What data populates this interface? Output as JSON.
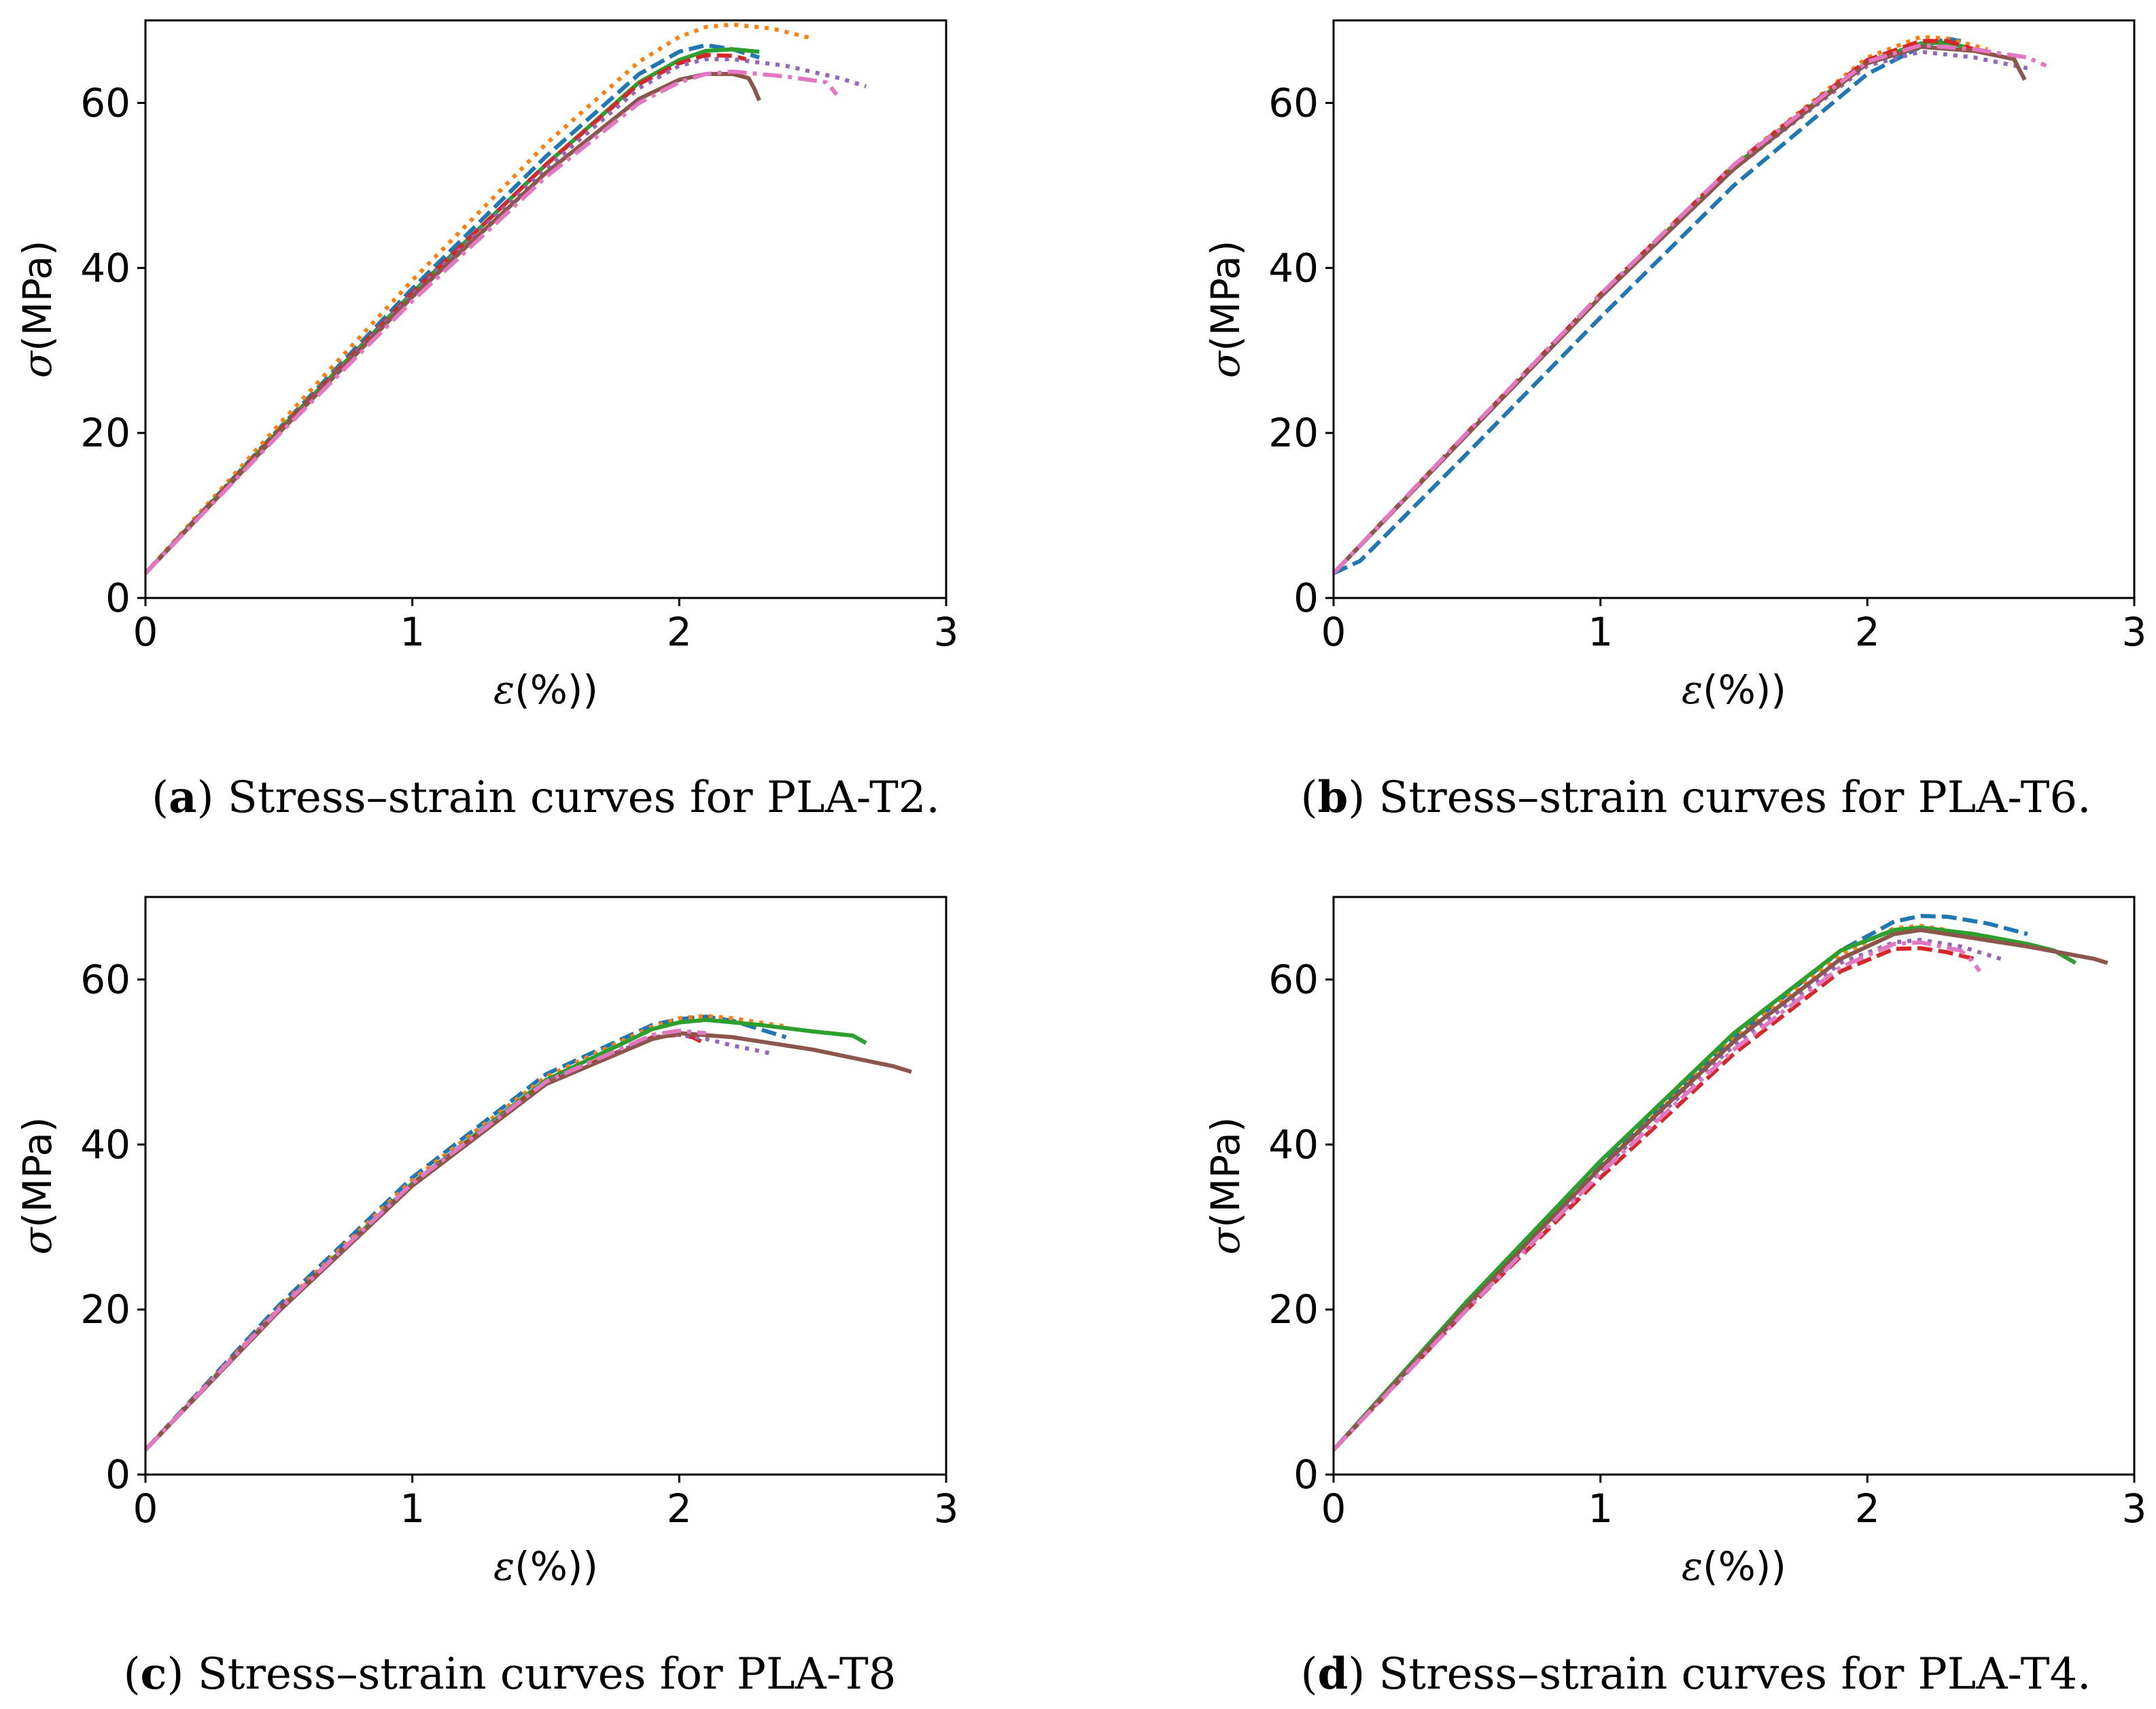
{
  "colors": {
    "tab_blue": "#1f77b4",
    "tab_orange": "#ff7f0e",
    "tab_green": "#2ca02c",
    "tab_red": "#d62728",
    "tab_purple": "#9467bd",
    "tab_brown": "#8c564b",
    "tab_pink": "#e377c2"
  },
  "chart_data": [
    {
      "type": "line",
      "panel": "a",
      "caption_letter": "a",
      "caption_text": " Stress–strain curves for PLA-T2.",
      "xlabel_symbol": "ε",
      "xlabel_unit": "(%))",
      "ylabel_symbol": "σ",
      "ylabel_unit": "(MPa)",
      "xlim": [
        0,
        3
      ],
      "ylim": [
        0,
        70
      ],
      "xticks": [
        0,
        1,
        2,
        3
      ],
      "yticks": [
        0,
        20,
        40,
        60
      ],
      "xtick_labels": [
        "0",
        "1",
        "2",
        "3"
      ],
      "ytick_labels": [
        "0",
        "20",
        "40",
        "60"
      ],
      "series": [
        {
          "color": "tab_blue",
          "dash": "dashed",
          "x": [
            0,
            0.5,
            1.0,
            1.5,
            1.85,
            2.0,
            2.1,
            2.2,
            2.3
          ],
          "y": [
            3,
            20.5,
            37.5,
            53.5,
            63.5,
            66.2,
            67.0,
            66.5,
            65.5
          ]
        },
        {
          "color": "tab_orange",
          "dash": "dotted",
          "x": [
            0,
            0.5,
            1.0,
            1.5,
            1.85,
            2.0,
            2.1,
            2.2,
            2.35,
            2.5
          ],
          "y": [
            3,
            21,
            38.5,
            55,
            65,
            68,
            69.2,
            69.5,
            69.0,
            67.8
          ]
        },
        {
          "color": "tab_green",
          "dash": "solid",
          "x": [
            0,
            0.5,
            1.0,
            1.5,
            1.85,
            2.0,
            2.1,
            2.2,
            2.3
          ],
          "y": [
            3,
            20.3,
            37,
            52.5,
            62.5,
            65.2,
            66.3,
            66.5,
            66.2
          ]
        },
        {
          "color": "tab_red",
          "dash": "dashed",
          "x": [
            0,
            0.5,
            1.0,
            1.5,
            1.85,
            2.0,
            2.1,
            2.2,
            2.25
          ],
          "y": [
            3,
            20.2,
            37,
            52.5,
            62.3,
            64.8,
            65.8,
            65.7,
            65.3
          ]
        },
        {
          "color": "tab_purple",
          "dash": "dotted",
          "x": [
            0,
            0.5,
            1.0,
            1.5,
            1.85,
            2.0,
            2.1,
            2.2,
            2.4,
            2.6,
            2.7
          ],
          "y": [
            3,
            20,
            36.8,
            52,
            61.8,
            64.5,
            65.3,
            65.3,
            64.5,
            63.0,
            62.0
          ]
        },
        {
          "color": "tab_brown",
          "dash": "solid",
          "x": [
            0,
            0.5,
            1.0,
            1.5,
            1.85,
            2.0,
            2.1,
            2.2,
            2.26,
            2.28,
            2.3
          ],
          "y": [
            3,
            20,
            36.5,
            51.5,
            60.5,
            62.8,
            63.5,
            63.5,
            63.0,
            61.8,
            60.3
          ]
        },
        {
          "color": "tab_pink",
          "dash": "dashdot",
          "x": [
            0,
            0.5,
            1.0,
            1.5,
            1.85,
            2.0,
            2.1,
            2.2,
            2.4,
            2.55,
            2.57,
            2.59
          ],
          "y": [
            3,
            19.8,
            36,
            51,
            60,
            62.5,
            63.5,
            63.8,
            63.2,
            62.5,
            61.8,
            61.0
          ]
        }
      ]
    },
    {
      "type": "line",
      "panel": "b",
      "caption_letter": "b",
      "caption_text": " Stress–strain curves for PLA-T6.",
      "xlabel_symbol": "ε",
      "xlabel_unit": "(%))",
      "ylabel_symbol": "σ",
      "ylabel_unit": "(MPa)",
      "xlim": [
        0,
        3
      ],
      "ylim": [
        0,
        70
      ],
      "xticks": [
        0,
        1,
        2,
        3
      ],
      "yticks": [
        0,
        20,
        40,
        60
      ],
      "xtick_labels": [
        "0",
        "1",
        "2",
        "3"
      ],
      "ytick_labels": [
        "0",
        "20",
        "40",
        "60"
      ],
      "series": [
        {
          "color": "tab_blue",
          "dash": "dashed",
          "x": [
            0,
            0.1,
            0.3,
            0.5,
            1.0,
            1.5,
            2.0,
            2.2,
            2.3,
            2.35
          ],
          "y": [
            3,
            4.5,
            11,
            17.5,
            34,
            50,
            63.5,
            66.8,
            67.8,
            67.5
          ]
        },
        {
          "color": "tab_orange",
          "dash": "dotted",
          "x": [
            0,
            0.5,
            1.0,
            1.5,
            2.0,
            2.2,
            2.3,
            2.45
          ],
          "y": [
            3,
            19.8,
            36.5,
            52.5,
            65.5,
            68.0,
            67.8,
            66.5
          ]
        },
        {
          "color": "tab_green",
          "dash": "solid",
          "x": [
            0,
            0.5,
            1.0,
            1.5,
            2.0,
            2.2,
            2.3,
            2.4
          ],
          "y": [
            3,
            19.8,
            36.5,
            52.3,
            65,
            67.2,
            67.3,
            66.5
          ]
        },
        {
          "color": "tab_red",
          "dash": "dashed",
          "x": [
            0,
            0.5,
            1.0,
            1.5,
            2.0,
            2.2,
            2.3,
            2.45
          ],
          "y": [
            3,
            20,
            36.8,
            52.5,
            65.2,
            67.5,
            67.5,
            66.0
          ]
        },
        {
          "color": "tab_purple",
          "dash": "dotted",
          "x": [
            0,
            0.5,
            1.0,
            1.5,
            2.0,
            2.2,
            2.4,
            2.6
          ],
          "y": [
            3,
            19.8,
            36.5,
            52,
            64.5,
            66.2,
            65.5,
            64.2
          ]
        },
        {
          "color": "tab_brown",
          "dash": "solid",
          "x": [
            0,
            0.5,
            1.0,
            1.5,
            2.0,
            2.2,
            2.4,
            2.55,
            2.57,
            2.59
          ],
          "y": [
            3,
            19.8,
            36.5,
            52,
            64.8,
            66.8,
            66.3,
            65.3,
            64.0,
            62.8
          ]
        },
        {
          "color": "tab_pink",
          "dash": "dashdot",
          "x": [
            0,
            0.5,
            1.0,
            1.5,
            2.0,
            2.2,
            2.4,
            2.6,
            2.67
          ],
          "y": [
            3,
            20,
            36.8,
            52.5,
            65,
            67.0,
            66.5,
            65.5,
            64.5
          ]
        }
      ]
    },
    {
      "type": "line",
      "panel": "c",
      "caption_letter": "c",
      "caption_text": " Stress–strain curves for PLA-T8",
      "xlabel_symbol": "ε",
      "xlabel_unit": "(%))",
      "ylabel_symbol": "σ",
      "ylabel_unit": "(MPa)",
      "xlim": [
        0,
        3
      ],
      "ylim": [
        0,
        70
      ],
      "xticks": [
        0,
        1,
        2,
        3
      ],
      "yticks": [
        0,
        20,
        40,
        60
      ],
      "xtick_labels": [
        "0",
        "1",
        "2",
        "3"
      ],
      "ytick_labels": [
        "0",
        "20",
        "40",
        "60"
      ],
      "series": [
        {
          "color": "tab_blue",
          "dash": "dashed",
          "x": [
            0,
            0.5,
            1.0,
            1.5,
            1.9,
            2.0,
            2.1,
            2.2,
            2.3,
            2.4
          ],
          "y": [
            3,
            20.5,
            36,
            48.5,
            54.5,
            55.2,
            55.5,
            55.0,
            54.0,
            53.0
          ]
        },
        {
          "color": "tab_orange",
          "dash": "dotted",
          "x": [
            0,
            0.5,
            1.0,
            1.5,
            1.9,
            2.0,
            2.1,
            2.2,
            2.3,
            2.4
          ],
          "y": [
            3,
            20.2,
            35.7,
            48.2,
            54.3,
            55.3,
            55.6,
            55.3,
            54.8,
            54.3
          ]
        },
        {
          "color": "tab_green",
          "dash": "solid",
          "x": [
            0,
            0.5,
            1.0,
            1.5,
            1.9,
            2.0,
            2.1,
            2.3,
            2.5,
            2.65,
            2.7
          ],
          "y": [
            3,
            20,
            35.3,
            47.8,
            54,
            54.8,
            55.1,
            54.5,
            53.7,
            53.2,
            52.3
          ]
        },
        {
          "color": "tab_red",
          "dash": "dashed",
          "x": [
            0,
            0.5,
            1.0,
            1.5,
            1.9,
            2.0,
            2.05,
            2.1
          ],
          "y": [
            3,
            20,
            35.2,
            47.5,
            53.0,
            53.3,
            53.0,
            52.2
          ]
        },
        {
          "color": "tab_purple",
          "dash": "dotted",
          "x": [
            0,
            0.5,
            1.0,
            1.5,
            1.9,
            2.0,
            2.1,
            2.2,
            2.35
          ],
          "y": [
            3,
            20,
            35.2,
            47.5,
            53,
            53.3,
            52.8,
            52.0,
            51.0
          ]
        },
        {
          "color": "tab_brown",
          "dash": "solid",
          "x": [
            0,
            0.5,
            1.0,
            1.5,
            1.9,
            2.0,
            2.2,
            2.5,
            2.8,
            2.87
          ],
          "y": [
            3,
            19.8,
            35,
            47.3,
            52.8,
            53.5,
            53.0,
            51.5,
            49.5,
            48.8
          ]
        },
        {
          "color": "tab_pink",
          "dash": "dashdot",
          "x": [
            0,
            0.5,
            1.0,
            1.5,
            1.9,
            2.0,
            2.1
          ],
          "y": [
            3,
            20,
            35.3,
            47.6,
            53.3,
            53.8,
            53.5
          ]
        }
      ]
    },
    {
      "type": "line",
      "panel": "d",
      "caption_letter": "d",
      "caption_text": " Stress–strain curves for PLA-T4.",
      "xlabel_symbol": "ε",
      "xlabel_unit": "(%))",
      "ylabel_symbol": "σ",
      "ylabel_unit": "(MPa)",
      "xlim": [
        0,
        3
      ],
      "ylim": [
        0,
        70
      ],
      "xticks": [
        0,
        1,
        2,
        3
      ],
      "yticks": [
        0,
        20,
        40,
        60
      ],
      "xtick_labels": [
        "0",
        "1",
        "2",
        "3"
      ],
      "ytick_labels": [
        "0",
        "20",
        "40",
        "60"
      ],
      "series": [
        {
          "color": "tab_blue",
          "dash": "dashed",
          "x": [
            0,
            0.5,
            1.0,
            1.5,
            1.9,
            2.1,
            2.2,
            2.3,
            2.45,
            2.6
          ],
          "y": [
            3,
            20.8,
            37.5,
            53,
            63.5,
            67.0,
            67.7,
            67.6,
            66.8,
            65.5
          ]
        },
        {
          "color": "tab_orange",
          "dash": "dotted",
          "x": [
            0,
            0.5,
            1.0,
            1.5,
            1.9,
            2.1,
            2.2,
            2.3
          ],
          "y": [
            3,
            20.5,
            37.2,
            52.8,
            63,
            66.2,
            66.5,
            66.0
          ]
        },
        {
          "color": "tab_green",
          "dash": "solid",
          "x": [
            0,
            0.5,
            1.0,
            1.5,
            1.9,
            2.1,
            2.2,
            2.4,
            2.6,
            2.7,
            2.78
          ],
          "y": [
            3,
            21,
            38,
            53.5,
            63.5,
            66.0,
            66.3,
            65.5,
            64.3,
            63.5,
            62.0
          ]
        },
        {
          "color": "tab_red",
          "dash": "dashed",
          "x": [
            0,
            0.5,
            1.0,
            1.5,
            1.9,
            2.1,
            2.2,
            2.3,
            2.4
          ],
          "y": [
            3,
            20,
            36,
            51,
            61,
            63.7,
            63.8,
            63.3,
            62.5
          ]
        },
        {
          "color": "tab_purple",
          "dash": "dotted",
          "x": [
            0,
            0.5,
            1.0,
            1.5,
            1.9,
            2.1,
            2.2,
            2.35,
            2.5
          ],
          "y": [
            3,
            20.3,
            36.8,
            52,
            62,
            64.5,
            64.8,
            64.0,
            62.5
          ]
        },
        {
          "color": "tab_brown",
          "dash": "solid",
          "x": [
            0,
            0.5,
            1.0,
            1.5,
            1.9,
            2.1,
            2.2,
            2.4,
            2.6,
            2.8,
            2.85,
            2.9
          ],
          "y": [
            3,
            20.5,
            37.2,
            52.5,
            62.5,
            65.5,
            66.0,
            65.0,
            64.0,
            62.8,
            62.5,
            62.0
          ]
        },
        {
          "color": "tab_pink",
          "dash": "dashdot",
          "x": [
            0,
            0.5,
            1.0,
            1.5,
            1.9,
            2.1,
            2.2,
            2.35,
            2.4,
            2.42
          ],
          "y": [
            3,
            20,
            36.5,
            51.5,
            61.5,
            64.3,
            64.5,
            63.5,
            62.0,
            61.0
          ]
        }
      ]
    }
  ]
}
